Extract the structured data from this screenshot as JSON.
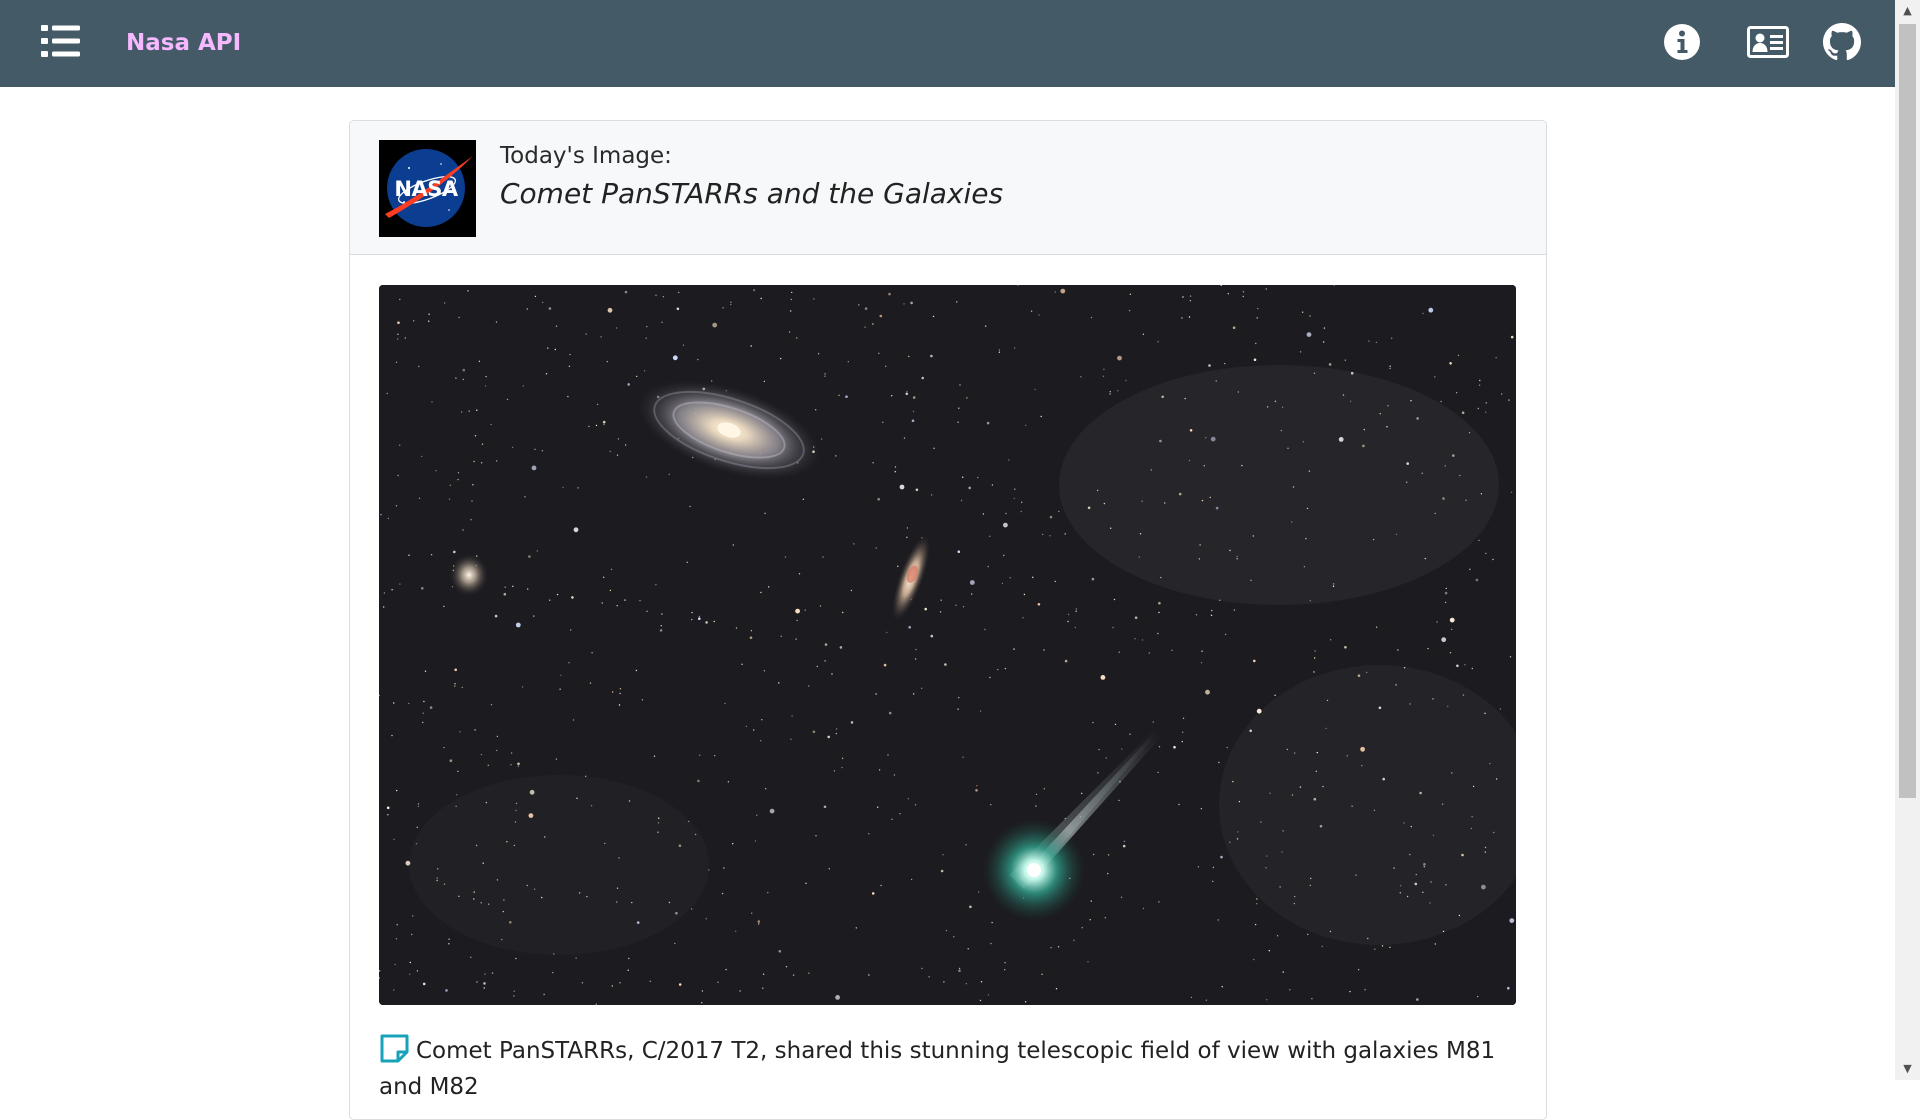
{
  "navbar": {
    "brand": "Nasa API",
    "icons": [
      "list-icon",
      "info-icon",
      "contact-card-icon",
      "github-icon"
    ],
    "background": "#455a67",
    "brand_color": "#f6b8ff"
  },
  "card": {
    "header_label": "Today's Image:",
    "title": "Comet PanSTARRs and the Galaxies",
    "description": "Comet PanSTARRs, C/2017 T2, shared this stunning telescopic field of view with galaxies M81 and M82"
  }
}
